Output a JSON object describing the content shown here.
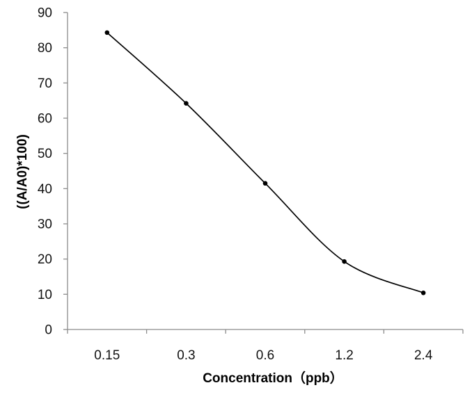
{
  "chart_data": {
    "type": "line",
    "smooth": true,
    "title": "",
    "xlabel": "Concentration（ppb）",
    "ylabel": "((A/A0)*100)",
    "categories": [
      "0.15",
      "0.3",
      "0.6",
      "1.2",
      "2.4"
    ],
    "series": [
      {
        "values": [
          84.3,
          64.2,
          41.5,
          19.3,
          10.4
        ]
      }
    ],
    "ylim": [
      0,
      90
    ],
    "yticks": [
      "0",
      "10",
      "20",
      "30",
      "40",
      "50",
      "60",
      "70",
      "80",
      "90"
    ],
    "grid": false,
    "legend": "none",
    "colors": {
      "line": "#000000",
      "marker": "#000000",
      "axis": "#8c8c8c"
    }
  }
}
